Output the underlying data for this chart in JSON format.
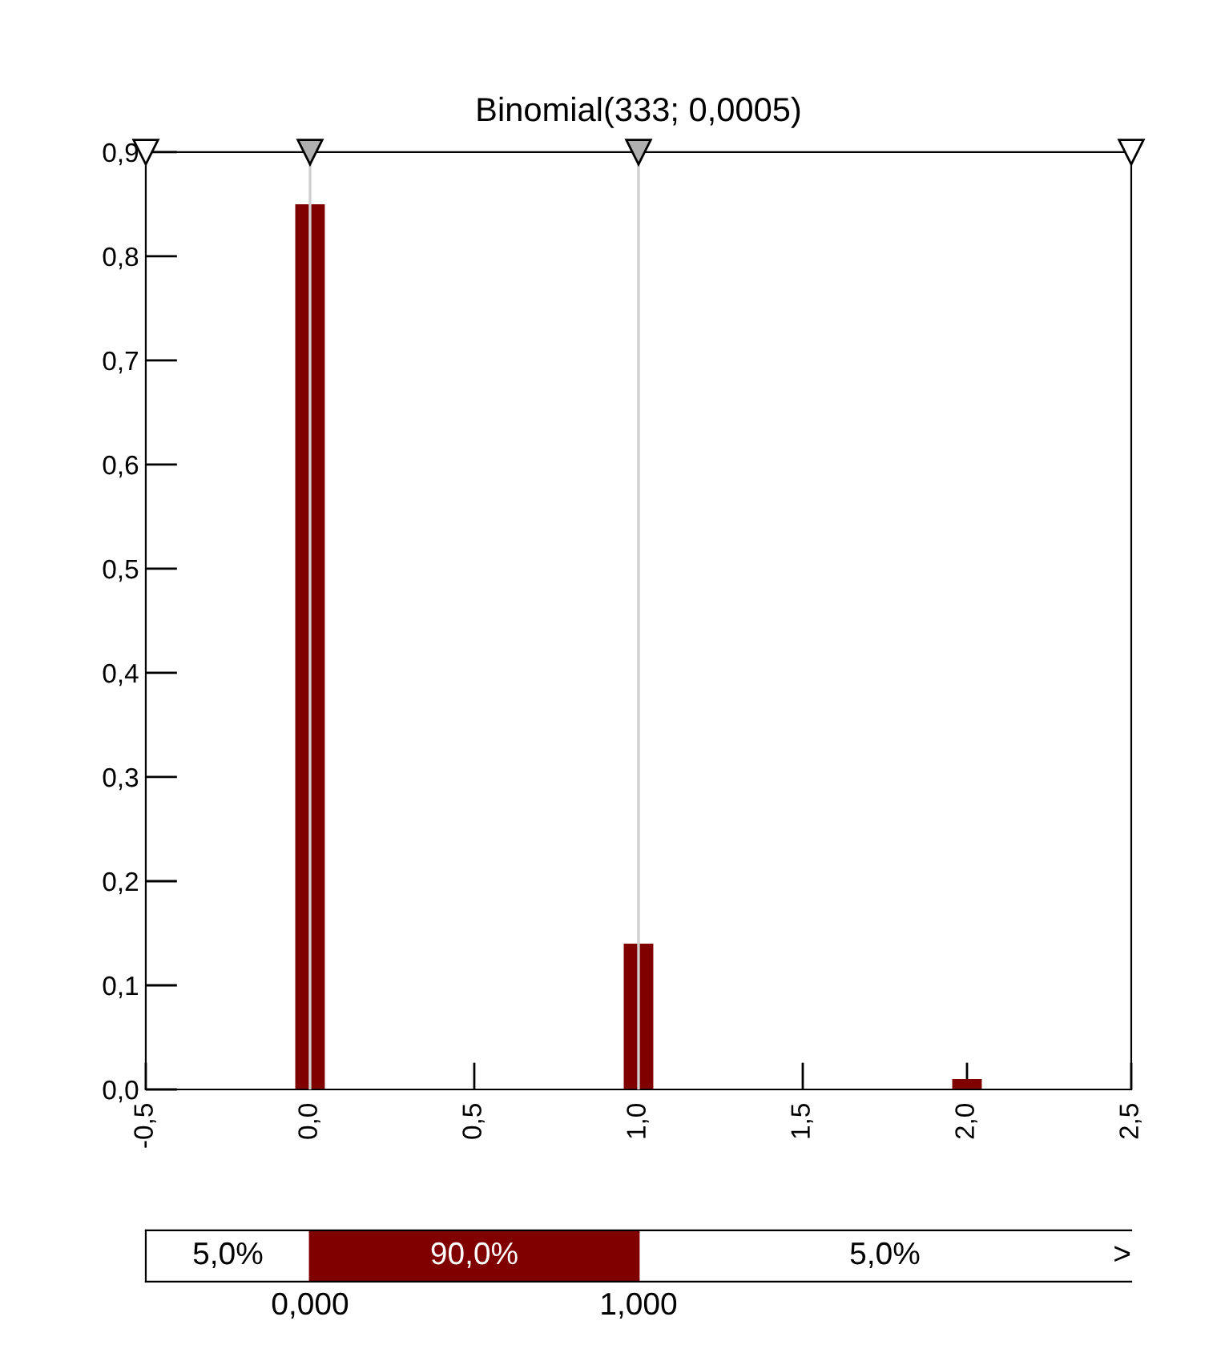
{
  "chart_data": [
    {
      "type": "bar",
      "title": "Binomial(333; 0,0005)",
      "x": [
        0,
        1,
        2
      ],
      "values": [
        0.85,
        0.14,
        0.01
      ],
      "color": "#800000",
      "xlim": [
        -0.5,
        2.5
      ],
      "ylim": [
        0,
        0.9
      ],
      "xticks": [
        {
          "value": -0.5,
          "label": "-0,5"
        },
        {
          "value": 0,
          "label": "0,0"
        },
        {
          "value": 0.5,
          "label": "0,5"
        },
        {
          "value": 1,
          "label": "1,0"
        },
        {
          "value": 1.5,
          "label": "1,5"
        },
        {
          "value": 2,
          "label": "2,0"
        },
        {
          "value": 2.5,
          "label": "2,5"
        }
      ],
      "yticks": [
        {
          "value": 0,
          "label": "0,0"
        },
        {
          "value": 0.1,
          "label": "0,1"
        },
        {
          "value": 0.2,
          "label": "0,2"
        },
        {
          "value": 0.3,
          "label": "0,3"
        },
        {
          "value": 0.4,
          "label": "0,4"
        },
        {
          "value": 0.5,
          "label": "0,5"
        },
        {
          "value": 0.6,
          "label": "0,6"
        },
        {
          "value": 0.7,
          "label": "0,7"
        },
        {
          "value": 0.8,
          "label": "0,8"
        },
        {
          "value": 0.9,
          "label": "0,9"
        }
      ],
      "ref_lines": [
        {
          "axis": "x",
          "value": 0,
          "color": "#d0d0d0"
        },
        {
          "axis": "x",
          "value": 1,
          "color": "#d0d0d0"
        }
      ],
      "grid": false
    },
    {
      "type": "other",
      "annotations": [
        "5,0%",
        "90,0%",
        "5,0%",
        ">",
        "0,000",
        "1,000"
      ]
    }
  ]
}
